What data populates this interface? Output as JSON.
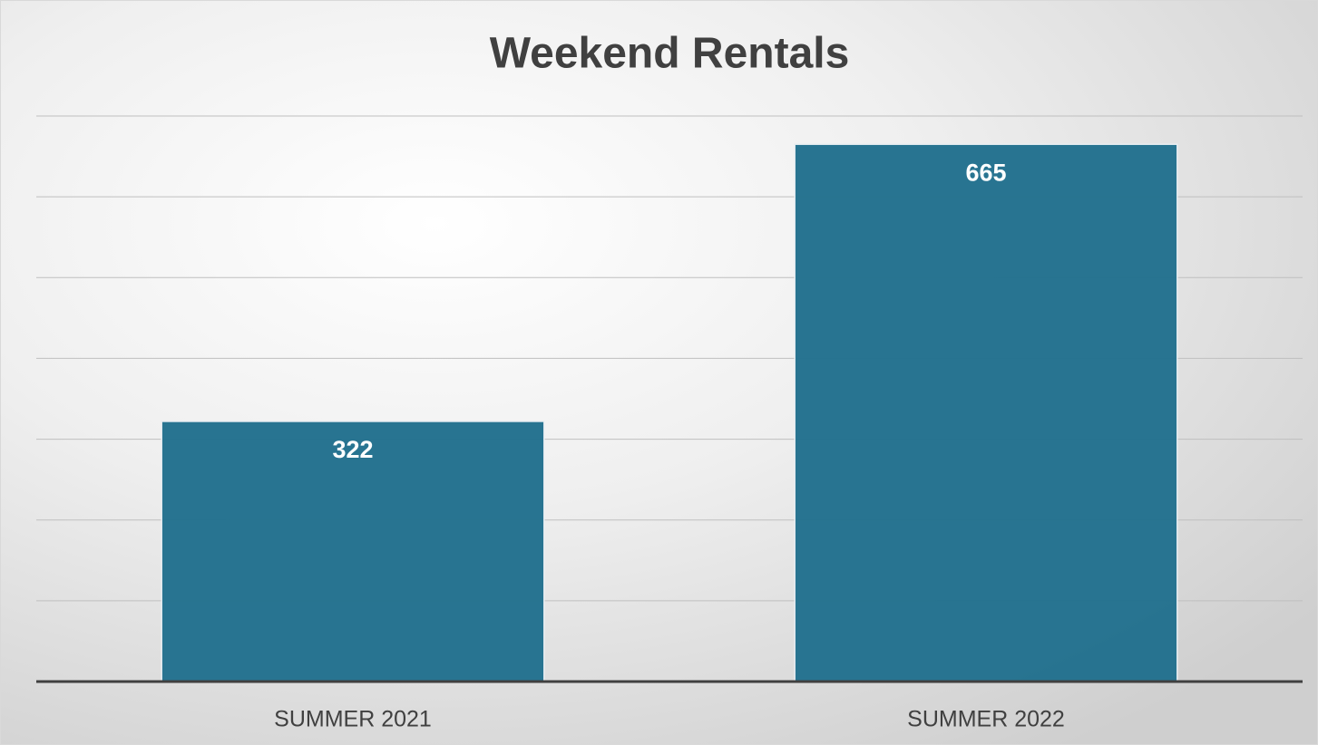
{
  "chart_data": {
    "type": "bar",
    "title": "Weekend Rentals",
    "categories": [
      "SUMMER 2021",
      "SUMMER 2022"
    ],
    "values": [
      322,
      665
    ],
    "color": "#24718f",
    "ylim": [
      0,
      700
    ],
    "yticks": [
      0,
      100,
      200,
      300,
      400,
      500,
      600,
      700
    ],
    "grid": true
  }
}
